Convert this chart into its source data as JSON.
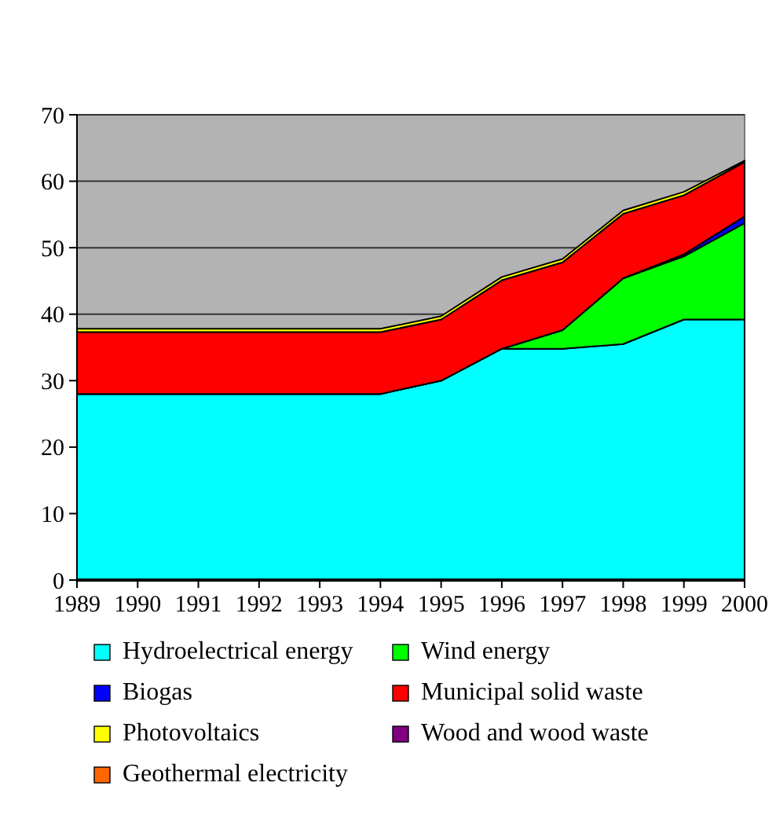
{
  "chart_data": {
    "type": "area",
    "stacked": true,
    "categories": [
      "1989",
      "1990",
      "1991",
      "1992",
      "1993",
      "1994",
      "1995",
      "1996",
      "1997",
      "1998",
      "1999",
      "2000"
    ],
    "ylim": [
      0,
      70
    ],
    "yticks": [
      0,
      10,
      20,
      30,
      40,
      50,
      60,
      70
    ],
    "grid": "y",
    "legend": "bottom",
    "series": [
      {
        "name": "Hydroelectrical energy",
        "color": "#00ffff",
        "values": [
          28,
          28,
          28,
          28,
          28,
          28,
          30,
          34.8,
          34.8,
          35.5,
          39.2,
          39.2
        ]
      },
      {
        "name": "Wind energy",
        "color": "#00ff00",
        "values": [
          0,
          0,
          0,
          0,
          0,
          0,
          0,
          0,
          2.8,
          9.9,
          9.5,
          14.5
        ]
      },
      {
        "name": "Biogas",
        "color": "#0000ff",
        "values": [
          0,
          0,
          0,
          0,
          0,
          0,
          0,
          0,
          0,
          0,
          0.3,
          1
        ]
      },
      {
        "name": "Municipal solid waste",
        "color": "#ff0000",
        "values": [
          9.3,
          9.3,
          9.3,
          9.3,
          9.3,
          9.3,
          9.2,
          10.3,
          10.2,
          9.7,
          8.9,
          8.2
        ]
      },
      {
        "name": "Photovoltaics",
        "color": "#ffff00",
        "values": [
          0.5,
          0.5,
          0.5,
          0.5,
          0.5,
          0.5,
          0.5,
          0.5,
          0.5,
          0.5,
          0.5,
          0.2
        ]
      },
      {
        "name": "Wood and wood waste",
        "color": "#800080",
        "values": [
          null,
          null,
          null,
          null,
          null,
          null,
          null,
          null,
          null,
          null,
          null,
          null
        ]
      },
      {
        "name": "Geothermal electricity",
        "color": "#ff6600",
        "values": [
          null,
          null,
          null,
          null,
          null,
          null,
          null,
          null,
          null,
          null,
          null,
          null
        ]
      }
    ]
  }
}
